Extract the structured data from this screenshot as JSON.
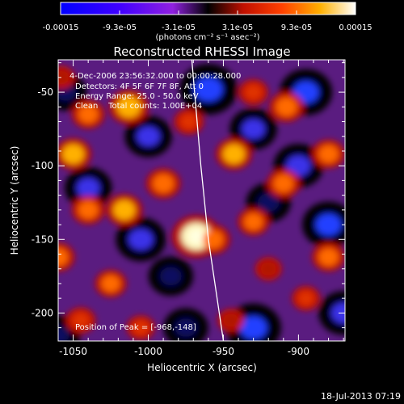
{
  "colorbar": {
    "tick_labels": [
      "-0.00015",
      "-9.3e-05",
      "-3.1e-05",
      "3.1e-05",
      "9.3e-05",
      "0.00015"
    ],
    "units_label": "(photons cm⁻² s⁻¹ asec⁻²)"
  },
  "chart_data": {
    "type": "heatmap",
    "title": "Reconstructed RHESSI Image",
    "annotations": [
      "4-Dec-2006 23:56:32.000 to 00:00:28.000",
      "Detectors: 4F 5F 6F 7F 8F, Att 0",
      "Energy Range: 25.0 - 50.0 keV",
      "Clean    Total counts: 1.00E+04"
    ],
    "peak_label": "Position of Peak = [-968,-148]",
    "peak": [
      -968,
      -148
    ],
    "xlabel": "Heliocentric X (arcsec)",
    "ylabel": "Heliocentric Y (arcsec)",
    "xlim": [
      -1060,
      -869
    ],
    "ylim": [
      -219,
      -28
    ],
    "x_ticks": [
      -1050,
      -1000,
      -950,
      -900
    ],
    "x_tick_labels": [
      "-1050",
      "-1000",
      "-950",
      "-900"
    ],
    "y_ticks": [
      -200,
      -150,
      -100,
      -50
    ],
    "y_tick_labels": [
      "-200",
      "-150",
      "-100",
      "-50"
    ],
    "color_range": [
      -0.00015,
      0.00015
    ],
    "limb": [
      [
        -971,
        -28
      ],
      [
        -965,
        -100
      ],
      [
        -960,
        -150
      ],
      [
        -950,
        -219
      ]
    ],
    "hot_spots": [
      {
        "x": -968,
        "y": -148,
        "v": 1.0
      },
      {
        "x": -957,
        "y": -150,
        "v": 0.55
      },
      {
        "x": -1050,
        "y": -92,
        "v": 0.6
      },
      {
        "x": -1013,
        "y": -60,
        "v": 0.7
      },
      {
        "x": -943,
        "y": -92,
        "v": 0.6
      },
      {
        "x": -1040,
        "y": -65,
        "v": 0.5
      },
      {
        "x": -1016,
        "y": -130,
        "v": 0.6
      },
      {
        "x": -1040,
        "y": -130,
        "v": 0.5
      },
      {
        "x": -990,
        "y": -112,
        "v": 0.55
      },
      {
        "x": -1060,
        "y": -162,
        "v": 0.5
      },
      {
        "x": -908,
        "y": -60,
        "v": 0.55
      },
      {
        "x": -910,
        "y": -112,
        "v": 0.5
      },
      {
        "x": -880,
        "y": -92,
        "v": 0.5
      },
      {
        "x": -930,
        "y": -138,
        "v": 0.45
      },
      {
        "x": -880,
        "y": -162,
        "v": 0.5
      },
      {
        "x": -1025,
        "y": -180,
        "v": 0.45
      },
      {
        "x": -1005,
        "y": -210,
        "v": 0.35
      },
      {
        "x": -1045,
        "y": -205,
        "v": 0.4
      },
      {
        "x": -930,
        "y": -50,
        "v": 0.4
      },
      {
        "x": -895,
        "y": -190,
        "v": 0.35
      },
      {
        "x": -973,
        "y": -70,
        "v": 0.4
      },
      {
        "x": -920,
        "y": -170,
        "v": 0.3
      },
      {
        "x": -945,
        "y": -205,
        "v": 0.3
      },
      {
        "x": -1058,
        "y": -40,
        "v": 0.3
      }
    ],
    "cold_spots": [
      {
        "x": -960,
        "y": -48,
        "v": -0.6
      },
      {
        "x": -895,
        "y": -50,
        "v": -0.5
      },
      {
        "x": -900,
        "y": -100,
        "v": -0.45
      },
      {
        "x": -930,
        "y": -210,
        "v": -0.55
      },
      {
        "x": -1000,
        "y": -80,
        "v": -0.4
      },
      {
        "x": -1040,
        "y": -115,
        "v": -0.4
      },
      {
        "x": -1005,
        "y": -150,
        "v": -0.45
      },
      {
        "x": -880,
        "y": -140,
        "v": -0.5
      },
      {
        "x": -870,
        "y": -200,
        "v": -0.45
      },
      {
        "x": -1060,
        "y": -215,
        "v": -0.35
      },
      {
        "x": -930,
        "y": -75,
        "v": -0.4
      },
      {
        "x": -920,
        "y": -125,
        "v": -0.35
      },
      {
        "x": -985,
        "y": -175,
        "v": -0.35
      },
      {
        "x": -1055,
        "y": -50,
        "v": -0.3
      },
      {
        "x": -975,
        "y": -210,
        "v": -0.35
      }
    ]
  },
  "footer": {
    "timestamp": "18-Jul-2013 07:19"
  }
}
